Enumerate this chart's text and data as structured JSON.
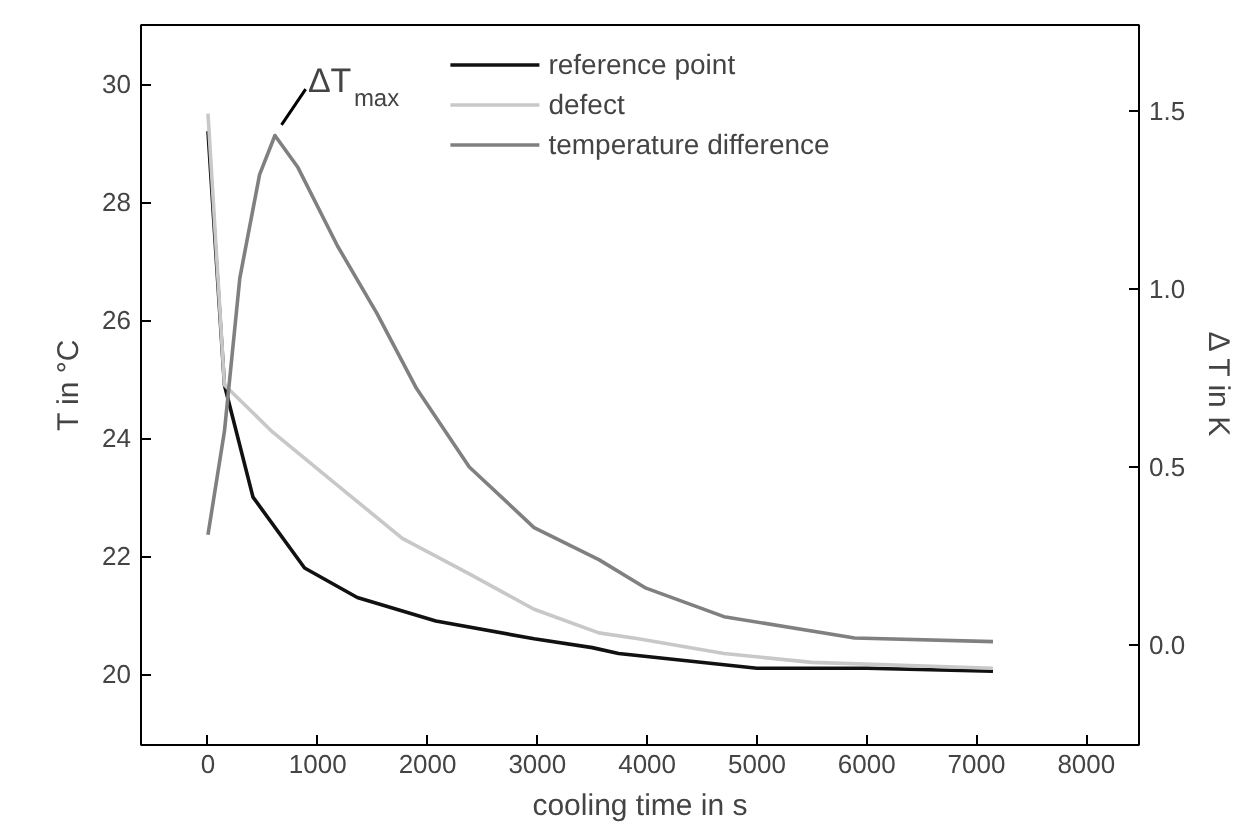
{
  "chart_data": {
    "type": "line",
    "xlabel": "cooling time in s",
    "ylabel": "T in °C",
    "y2label": "Δ T in K",
    "xlim": [
      -610,
      8480
    ],
    "xticks": [
      0,
      1000,
      2000,
      3000,
      4000,
      5000,
      6000,
      7000,
      8000
    ],
    "ylim": [
      18.8,
      31.0
    ],
    "yticks": [
      20,
      22,
      24,
      26,
      28,
      30
    ],
    "y2lim": [
      -0.28,
      1.74
    ],
    "y2ticks": [
      {
        "value": 0,
        "label": "0.0"
      },
      0.5,
      {
        "value": 1,
        "label": "1.0"
      },
      1.5
    ],
    "legend": "top",
    "grid": false,
    "marker": "none",
    "line_style": "solid",
    "annotations": [
      "ΔT$_{max}$"
    ],
    "series": [
      {
        "name": "reference point",
        "color": "#111111",
        "x": [
          0,
          150,
          410,
          880,
          1360,
          2075,
          2970,
          3500,
          3740,
          5000,
          6000,
          7150
        ],
        "values": [
          29.2,
          24.9,
          23.0,
          21.8,
          21.3,
          20.9,
          20.6,
          20.45,
          20.35,
          20.1,
          20.1,
          20.05
        ]
      },
      {
        "name": "defect",
        "color": "#c8c8c8",
        "x": [
          0,
          150,
          590,
          1180,
          1770,
          2380,
          2970,
          3560,
          3920,
          4700,
          5500,
          7150
        ],
        "values": [
          29.5,
          24.9,
          24.1,
          23.2,
          22.3,
          21.7,
          21.1,
          20.7,
          20.6,
          20.35,
          20.2,
          20.1
        ]
      },
      {
        "name": "temperature difference",
        "color": "#808080",
        "axis": "y2",
        "x": [
          0,
          150,
          290,
          470,
          610,
          820,
          1180,
          1540,
          1900,
          2380,
          2970,
          3560,
          3990,
          4700,
          5890,
          7150
        ],
        "values": [
          0.31,
          0.6,
          1.03,
          1.32,
          1.43,
          1.34,
          1.12,
          0.93,
          0.72,
          0.5,
          0.33,
          0.24,
          0.16,
          0.08,
          0.02,
          0.01
        ]
      }
    ]
  }
}
